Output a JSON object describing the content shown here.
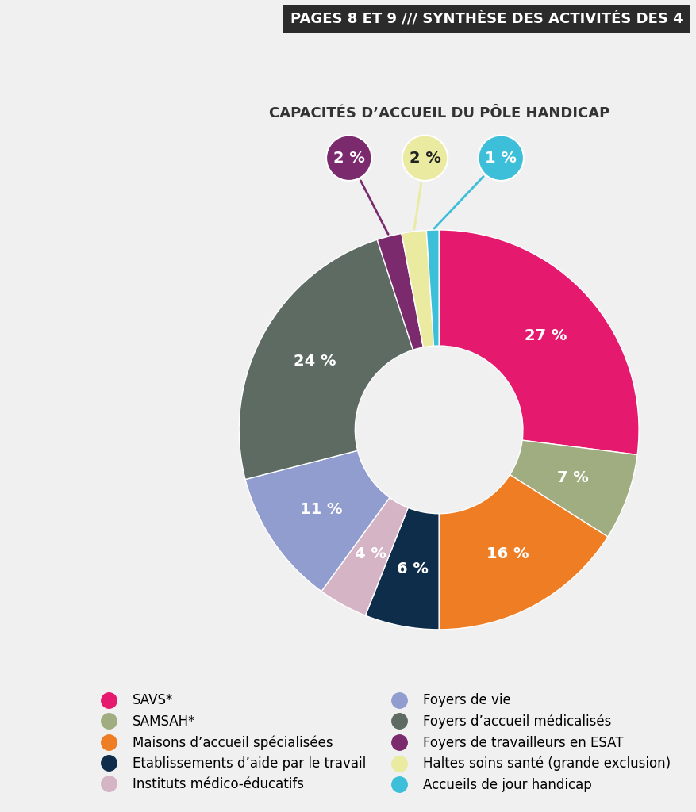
{
  "chart_data": {
    "type": "pie",
    "subtitle": "PAGES 8 ET 9 /// SYNTHÈSE DES ACTIVITÉS DES 4",
    "title": "CAPACITÉS D’ACCUEIL DU PÔLE HANDICAP",
    "categories": [
      "SAVS*",
      "SAMSAH*",
      "Maisons d’accueil spécialisées",
      "Etablissements d’aide par le travail",
      "Instituts médico-éducatifs",
      "Foyers de vie",
      "Foyers d’accueil médicalisés",
      "Foyers de travailleurs en ESAT",
      "Haltes soins santé (grande exclusion)",
      "Accueils de jour handicap"
    ],
    "values": [
      27,
      7,
      16,
      6,
      4,
      11,
      24,
      2,
      2,
      1
    ],
    "value_labels": [
      "27 %",
      "7 %",
      "16 %",
      "6 %",
      "4 %",
      "11 %",
      "24 %",
      "2 %",
      "2 %",
      "1 %"
    ],
    "colors": [
      "#e5196e",
      "#a0ad80",
      "#ee7d23",
      "#0e2d4a",
      "#d5b4c6",
      "#919ccf",
      "#5d6b63",
      "#7b2a6e",
      "#eaeaa0",
      "#3dbfd9"
    ],
    "data_labels": true,
    "legend": "lower center"
  }
}
